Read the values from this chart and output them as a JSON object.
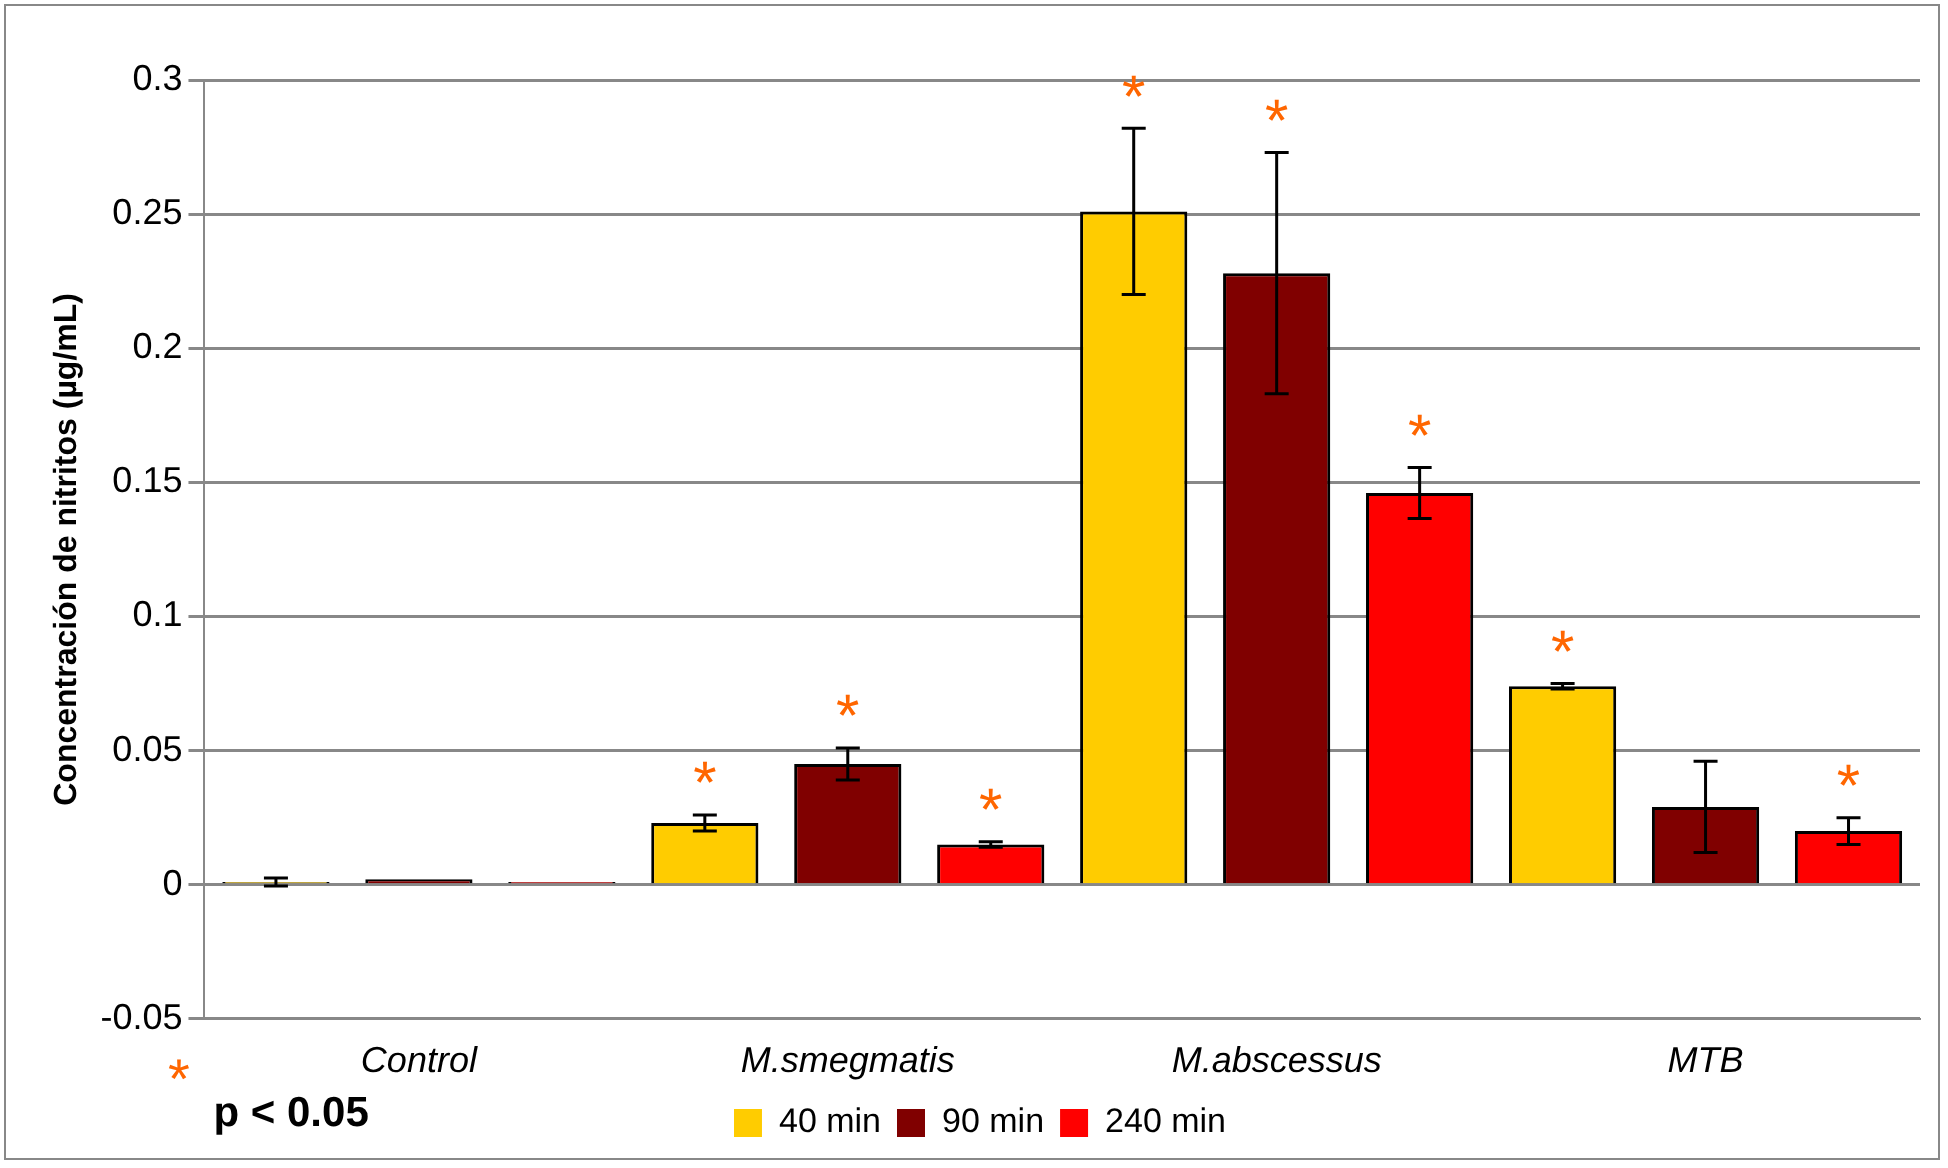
{
  "chart_data": {
    "type": "bar",
    "ylabel": "Concentración de nitritos (µg/mL)",
    "categories": [
      "Control",
      "M.smegmatis",
      "M.abscessus",
      "MTB"
    ],
    "series": [
      {
        "name": "40 min",
        "color": "#ffcc00",
        "values": [
          0.001,
          0.023,
          0.251,
          0.074
        ],
        "errors": [
          0.0015,
          0.003,
          0.031,
          0.001
        ],
        "value_labels": [
          null,
          "*",
          "*",
          "*"
        ]
      },
      {
        "name": "90 min",
        "color": "#800000",
        "values": [
          0.002,
          0.045,
          0.228,
          0.029
        ],
        "errors": [
          null,
          0.006,
          0.045,
          0.017
        ],
        "value_labels": [
          null,
          "*",
          "*",
          null
        ]
      },
      {
        "name": "240 min",
        "color": "#ff0000",
        "values": [
          0.001,
          0.015,
          0.146,
          0.02
        ],
        "errors": [
          null,
          0.001,
          0.0095,
          0.005
        ],
        "value_labels": [
          null,
          "*",
          "*",
          "*"
        ]
      }
    ],
    "ylim": [
      -0.05,
      0.3
    ],
    "yticks": [
      -0.05,
      0,
      0.05,
      0.1,
      0.15,
      0.2,
      0.25,
      0.3
    ],
    "grid": "y",
    "legend": "bottom",
    "annotations": [
      "* p < 0.05"
    ]
  }
}
